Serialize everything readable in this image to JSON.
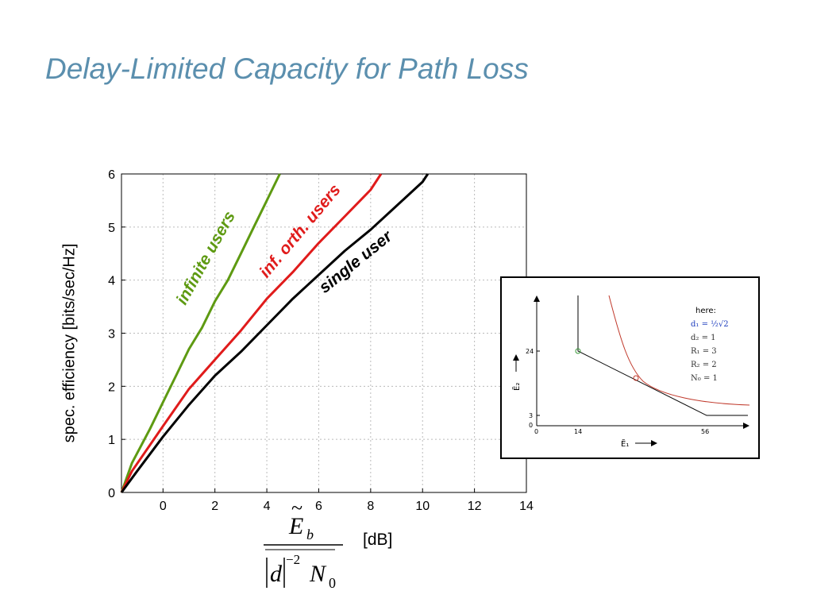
{
  "slide": {
    "title": "Delay-Limited Capacity for Path Loss"
  },
  "chart_data": {
    "type": "line",
    "title": "",
    "xlabel": "[dB]",
    "ylabel": "spec. efficiency [bits/sec/Hz]",
    "xlim": [
      -1.6,
      14
    ],
    "ylim": [
      0,
      6
    ],
    "xticks": [
      "0",
      "2",
      "4",
      "6",
      "8",
      "10",
      "12",
      "14"
    ],
    "yticks": [
      "0",
      "1",
      "2",
      "3",
      "4",
      "5",
      "6"
    ],
    "grid": true,
    "series": [
      {
        "name": "infinite users",
        "color": "#5e9a12",
        "points": [
          [
            -1.6,
            0
          ],
          [
            -1.2,
            0.55
          ],
          [
            -0.5,
            1.2
          ],
          [
            0,
            1.7
          ],
          [
            0.5,
            2.2
          ],
          [
            1,
            2.7
          ],
          [
            1.5,
            3.1
          ],
          [
            2,
            3.6
          ],
          [
            2.5,
            4.0
          ],
          [
            3,
            4.5
          ],
          [
            3.5,
            5.0
          ],
          [
            4,
            5.5
          ],
          [
            4.5,
            6.0
          ]
        ]
      },
      {
        "name": "inf. orth. users",
        "color": "#e01b1b",
        "points": [
          [
            -1.6,
            0
          ],
          [
            -1.2,
            0.4
          ],
          [
            0,
            1.25
          ],
          [
            1,
            1.95
          ],
          [
            2,
            2.5
          ],
          [
            3,
            3.05
          ],
          [
            4,
            3.65
          ],
          [
            5,
            4.15
          ],
          [
            6,
            4.7
          ],
          [
            7,
            5.2
          ],
          [
            8,
            5.7
          ],
          [
            8.4,
            6.0
          ]
        ]
      },
      {
        "name": "single user",
        "color": "#000000",
        "points": [
          [
            -1.6,
            0
          ],
          [
            -1,
            0.4
          ],
          [
            0,
            1.05
          ],
          [
            1,
            1.65
          ],
          [
            2,
            2.2
          ],
          [
            3,
            2.65
          ],
          [
            4,
            3.15
          ],
          [
            5,
            3.65
          ],
          [
            6,
            4.1
          ],
          [
            7,
            4.55
          ],
          [
            8,
            4.95
          ],
          [
            9,
            5.4
          ],
          [
            10,
            5.85
          ],
          [
            10.2,
            6.0
          ]
        ]
      }
    ],
    "formula": {
      "numerator": "E",
      "subscript": "b",
      "den_d": "d",
      "den_exp": "−2",
      "den_N": "N",
      "den_sub": "0"
    }
  },
  "inset": {
    "legend_title": "here:",
    "legend_lines": [
      "d₁ = ½√2",
      "d₂ = 1",
      "R₁ = 3",
      "R₂ = 2",
      "N₀ = 1"
    ],
    "x_ticks": [
      "0",
      "14",
      "56"
    ],
    "y_ticks": [
      "0",
      "3",
      "24"
    ],
    "x_axis_label": "Ẽ₁",
    "y_axis_label": "Ẽ₂"
  }
}
